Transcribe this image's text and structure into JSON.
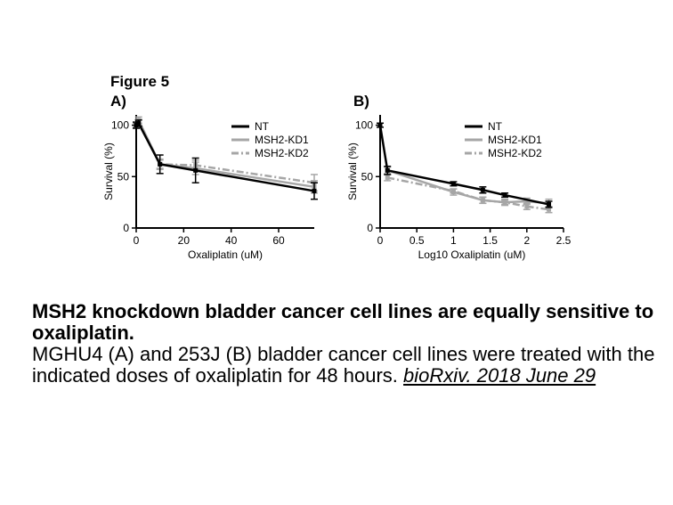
{
  "figure": {
    "title": "Figure 5",
    "panel_a_label": "A)",
    "panel_b_label": "B)"
  },
  "caption": {
    "title_line": "MSH2 knockdown bladder cancer cell lines are equally sensitive to oxaliplatin.",
    "body": "MGHU4 (A) and 253J (B) bladder cancer cell lines were treated with the indicated doses of oxaliplatin for 48 hours. ",
    "citation": "bioRxiv. 2018 June 29"
  },
  "colors": {
    "NT": "#000000",
    "MSH2-KD1": "#a6a6a6",
    "MSH2-KD2": "#a6a6a6"
  },
  "chart_data": [
    {
      "type": "line",
      "panel": "A)",
      "xlabel": "Oxaliplatin (uM)",
      "ylabel": "Survival (%)",
      "xlim": [
        0,
        75
      ],
      "ylim": [
        0,
        110
      ],
      "xticks": [
        0,
        20,
        40,
        60
      ],
      "yticks": [
        0,
        50,
        100
      ],
      "legend_position": "top-right",
      "series": [
        {
          "name": "NT",
          "style": "solid",
          "x": [
            0,
            1,
            10,
            25,
            75
          ],
          "y": [
            100,
            102,
            62,
            56,
            36
          ],
          "err": [
            3,
            3,
            9,
            12,
            8
          ]
        },
        {
          "name": "MSH2-KD1",
          "style": "solid",
          "x": [
            0,
            1,
            10,
            25,
            75
          ],
          "y": [
            100,
            105,
            62,
            58,
            40
          ],
          "err": [
            2,
            3,
            5,
            6,
            6
          ]
        },
        {
          "name": "MSH2-KD2",
          "style": "dashdot",
          "x": [
            0,
            1,
            10,
            25,
            75
          ],
          "y": [
            100,
            103,
            62,
            61,
            44
          ],
          "err": [
            2,
            3,
            4,
            5,
            8
          ]
        }
      ]
    },
    {
      "type": "line",
      "panel": "B)",
      "xlabel": "Log10 Oxaliplatin (uM)",
      "ylabel": "Survival (%)",
      "xlim": [
        0,
        2.5
      ],
      "ylim": [
        0,
        110
      ],
      "xticks": [
        0,
        0.5,
        1,
        1.5,
        2,
        2.5
      ],
      "yticks": [
        0,
        50,
        100
      ],
      "legend_position": "top-right",
      "series": [
        {
          "name": "NT",
          "style": "solid",
          "x": [
            0,
            0.1,
            1,
            1.4,
            1.7,
            2.3
          ],
          "y": [
            100,
            56,
            43,
            37,
            32,
            23
          ],
          "err": [
            2,
            4,
            2,
            3,
            2,
            3
          ]
        },
        {
          "name": "MSH2-KD1",
          "style": "solid",
          "x": [
            0.1,
            1,
            1.4,
            1.7,
            2,
            2.3
          ],
          "y": [
            56,
            35,
            27,
            25,
            26,
            24
          ],
          "err": [
            3,
            3,
            3,
            3,
            3,
            4
          ]
        },
        {
          "name": "MSH2-KD2",
          "style": "dashdot",
          "x": [
            0.1,
            1,
            1.4,
            1.7,
            2,
            2.3
          ],
          "y": [
            49,
            36,
            27,
            25,
            21,
            18
          ],
          "err": [
            3,
            2,
            3,
            2,
            3,
            3
          ]
        }
      ]
    }
  ]
}
